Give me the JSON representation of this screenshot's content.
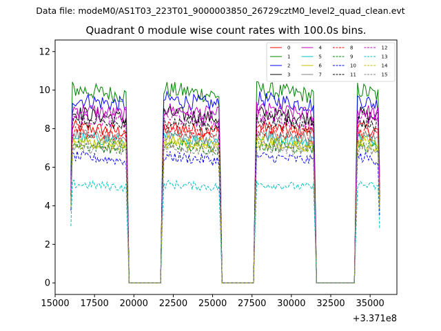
{
  "suptitle": "Data file: modeM0/AS1T03_223T01_9000003850_26729cztM0_level2_quad_clean.evt",
  "chart_data": {
    "type": "line",
    "title": "Quadrant 0 module wise count rates with 100.0s bins.",
    "xlabel": "",
    "ylabel": "",
    "x_offset_label": "+3.371e8",
    "xlim": [
      15000,
      36700
    ],
    "ylim": [
      -0.6,
      12.6
    ],
    "x_ticks": [
      15000,
      17500,
      20000,
      22500,
      25000,
      27500,
      30000,
      32500,
      35000
    ],
    "x_tick_labels": [
      "15000",
      "17500",
      "20000",
      "22500",
      "25000",
      "27500",
      "30000",
      "32500",
      "35000"
    ],
    "y_ticks": [
      0,
      2,
      4,
      6,
      8,
      10,
      12
    ],
    "y_tick_labels": [
      "0",
      "2",
      "4",
      "6",
      "8",
      "10",
      "12"
    ],
    "x_start": 16000,
    "x_end": 35600,
    "bin_size": 100,
    "good_time_intervals": [
      [
        16000,
        19600
      ],
      [
        21800,
        25500
      ],
      [
        27700,
        31500
      ],
      [
        34100,
        35600
      ]
    ],
    "legend_position": "upper-right",
    "legend_columns": 4,
    "series": [
      {
        "name": "0",
        "color": "#ff0000",
        "dash": "solid",
        "mean_level": 7.9
      },
      {
        "name": "1",
        "color": "#008000",
        "dash": "solid",
        "mean_level": 9.8
      },
      {
        "name": "2",
        "color": "#0000ff",
        "dash": "solid",
        "mean_level": 9.3
      },
      {
        "name": "3",
        "color": "#000000",
        "dash": "solid",
        "mean_level": 8.6
      },
      {
        "name": "4",
        "color": "#bf00bf",
        "dash": "solid",
        "mean_level": 8.8
      },
      {
        "name": "5",
        "color": "#00bfbf",
        "dash": "solid",
        "mean_level": 7.4
      },
      {
        "name": "6",
        "color": "#bfbf00",
        "dash": "solid",
        "mean_level": 7.2
      },
      {
        "name": "7",
        "color": "#808080",
        "dash": "solid",
        "mean_level": 7.5
      },
      {
        "name": "8",
        "color": "#ff0000",
        "dash": "dashed",
        "mean_level": 7.7
      },
      {
        "name": "9",
        "color": "#008000",
        "dash": "dashed",
        "mean_level": 7.0
      },
      {
        "name": "10",
        "color": "#0000ff",
        "dash": "dashed",
        "mean_level": 6.4
      },
      {
        "name": "11",
        "color": "#000000",
        "dash": "dashed",
        "mean_level": 8.2
      },
      {
        "name": "12",
        "color": "#bf00bf",
        "dash": "dashed",
        "mean_level": 8.4
      },
      {
        "name": "13",
        "color": "#00bfbf",
        "dash": "dashed",
        "mean_level": 5.0
      },
      {
        "name": "14",
        "color": "#bfbf00",
        "dash": "dashed",
        "mean_level": 7.1
      },
      {
        "name": "15",
        "color": "#808080",
        "dash": "dashed",
        "mean_level": 6.9
      }
    ]
  }
}
